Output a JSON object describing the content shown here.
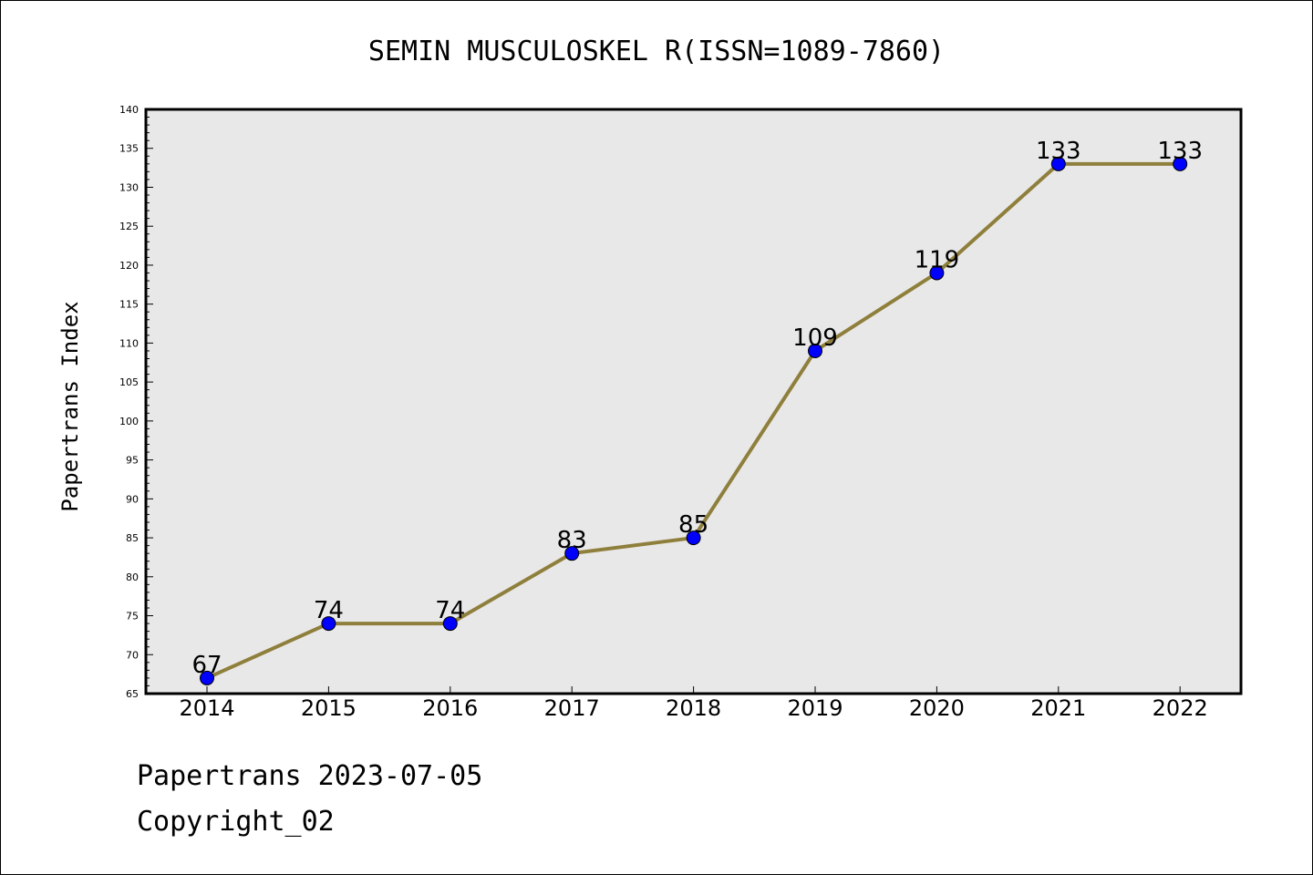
{
  "chart_data": {
    "type": "line",
    "title": "SEMIN MUSCULOSKEL R(ISSN=1089-7860)",
    "xlabel": "",
    "ylabel": "Papertrans Index",
    "x": [
      "2014",
      "2015",
      "2016",
      "2017",
      "2018",
      "2019",
      "2020",
      "2021",
      "2022"
    ],
    "series": [
      {
        "values": [
          67,
          74,
          74,
          83,
          85,
          109,
          119,
          133,
          133
        ]
      }
    ],
    "data_labels": [
      "67",
      "74",
      "74",
      "83",
      "85",
      "109",
      "119",
      "133",
      "133"
    ],
    "yticks": [
      65,
      70,
      75,
      80,
      85,
      90,
      95,
      100,
      105,
      110,
      115,
      120,
      125,
      130,
      135,
      140
    ],
    "ylim": [
      65,
      140
    ],
    "grid": false,
    "legend": "none",
    "colors": {
      "line": "#8f7f3c",
      "marker": "#0000ff",
      "plot_background": "#e8e8e8"
    }
  },
  "footer": {
    "date_line": "Papertrans 2023-07-05",
    "copyright": "Copyright_02"
  }
}
